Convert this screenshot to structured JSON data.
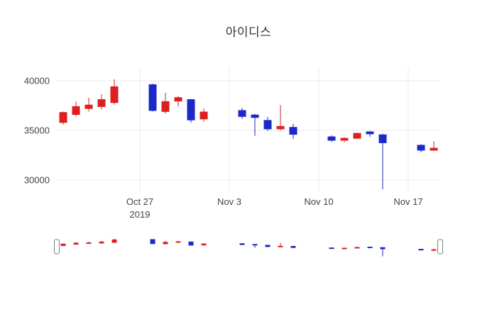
{
  "chart_data": {
    "type": "candlestick",
    "title": "아이디스",
    "increasing_color": "#dc1f1f",
    "decreasing_color": "#1c28c8",
    "grid_color": "#ebebeb",
    "tick_color": "#444444",
    "background": "#ffffff",
    "legend_position": "none",
    "grid": true,
    "rangeslider": true,
    "yticks": [
      30000,
      35000,
      40000
    ],
    "ylim": [
      28850,
      41350
    ],
    "xlim": [
      "2019-10-20T12:00:00Z",
      "2019-11-19T12:00:00Z"
    ],
    "xticks": [
      {
        "date": "2019-10-27",
        "label": "Oct 27",
        "sublabel": "2019"
      },
      {
        "date": "2019-11-03",
        "label": "Nov 3"
      },
      {
        "date": "2019-11-10",
        "label": "Nov 10"
      },
      {
        "date": "2019-11-17",
        "label": "Nov 17"
      }
    ],
    "candles": [
      {
        "date": "2019-10-21",
        "open": 35800,
        "high": 36900,
        "low": 35600,
        "close": 36800
      },
      {
        "date": "2019-10-22",
        "open": 36600,
        "high": 37900,
        "low": 36400,
        "close": 37400
      },
      {
        "date": "2019-10-23",
        "open": 37200,
        "high": 38300,
        "low": 36900,
        "close": 37550
      },
      {
        "date": "2019-10-24",
        "open": 37400,
        "high": 38650,
        "low": 37100,
        "close": 38100
      },
      {
        "date": "2019-10-25",
        "open": 37800,
        "high": 40150,
        "low": 37600,
        "close": 39400
      },
      {
        "date": "2019-10-28",
        "open": 39600,
        "high": 39700,
        "low": 36900,
        "close": 37000
      },
      {
        "date": "2019-10-29",
        "open": 36900,
        "high": 38800,
        "low": 36700,
        "close": 37900
      },
      {
        "date": "2019-10-30",
        "open": 37950,
        "high": 38450,
        "low": 37400,
        "close": 38300
      },
      {
        "date": "2019-10-31",
        "open": 38100,
        "high": 38150,
        "low": 35800,
        "close": 36050
      },
      {
        "date": "2019-11-01",
        "open": 36150,
        "high": 37200,
        "low": 35850,
        "close": 36850
      },
      {
        "date": "2019-11-04",
        "open": 37000,
        "high": 37250,
        "low": 36150,
        "close": 36400
      },
      {
        "date": "2019-11-05",
        "open": 36550,
        "high": 36650,
        "low": 34450,
        "close": 36300
      },
      {
        "date": "2019-11-06",
        "open": 36000,
        "high": 36350,
        "low": 34950,
        "close": 35150
      },
      {
        "date": "2019-11-07",
        "open": 35150,
        "high": 37550,
        "low": 35000,
        "close": 35400
      },
      {
        "date": "2019-11-08",
        "open": 35300,
        "high": 35650,
        "low": 34150,
        "close": 34600
      },
      {
        "date": "2019-11-11",
        "open": 34350,
        "high": 34500,
        "low": 33850,
        "close": 34000
      },
      {
        "date": "2019-11-12",
        "open": 34000,
        "high": 34300,
        "low": 33800,
        "close": 34200
      },
      {
        "date": "2019-11-13",
        "open": 34200,
        "high": 34750,
        "low": 34150,
        "close": 34700
      },
      {
        "date": "2019-11-14",
        "open": 34850,
        "high": 34950,
        "low": 34350,
        "close": 34650
      },
      {
        "date": "2019-11-15",
        "open": 34550,
        "high": 34650,
        "low": 29050,
        "close": 33750
      },
      {
        "date": "2019-11-18",
        "open": 33500,
        "high": 33600,
        "low": 32800,
        "close": 33000
      },
      {
        "date": "2019-11-19",
        "open": 33000,
        "high": 33900,
        "low": 32950,
        "close": 33200
      }
    ]
  }
}
